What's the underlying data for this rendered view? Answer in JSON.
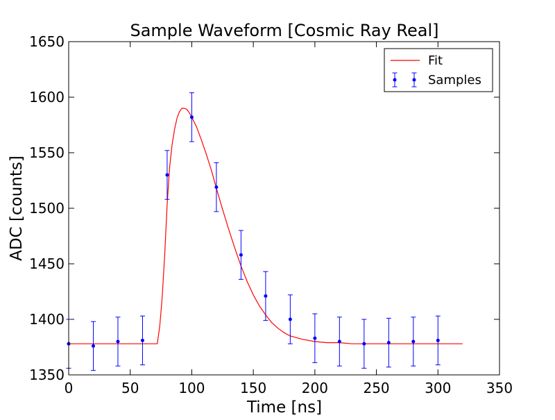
{
  "chart_data": {
    "type": "scatter",
    "title": "Sample Waveform [Cosmic Ray Real]",
    "xlabel": "Time [ns]",
    "ylabel": "ADC [counts]",
    "xlim": [
      0,
      350
    ],
    "ylim": [
      1350,
      1650
    ],
    "x_ticks": [
      0,
      50,
      100,
      150,
      200,
      250,
      300,
      350
    ],
    "y_ticks": [
      1350,
      1400,
      1450,
      1500,
      1550,
      1600,
      1650
    ],
    "grid": false,
    "legend_position": "top-right",
    "colors": {
      "fit": "#ff0000",
      "samples": "#0000ff"
    },
    "series": [
      {
        "name": "Fit",
        "kind": "line",
        "color": "#ff0000",
        "x": [
          0,
          72,
          74,
          76,
          78,
          80,
          82,
          84,
          86,
          88,
          90,
          92,
          94,
          96,
          98,
          100,
          104,
          108,
          112,
          116,
          120,
          125,
          130,
          135,
          140,
          145,
          150,
          155,
          160,
          165,
          170,
          175,
          180,
          190,
          200,
          210,
          220,
          230,
          240,
          260,
          280,
          300,
          320
        ],
        "y": [
          1378,
          1378,
          1394,
          1420,
          1458,
          1503,
          1537,
          1557,
          1571,
          1581,
          1587,
          1590,
          1590,
          1589,
          1586,
          1582,
          1573,
          1561,
          1548,
          1534,
          1518,
          1499,
          1481,
          1464,
          1448,
          1434,
          1422,
          1412,
          1404,
          1397,
          1392,
          1388,
          1385,
          1382,
          1380,
          1379,
          1379,
          1378,
          1378,
          1378,
          1378,
          1378,
          1378
        ]
      },
      {
        "name": "Samples",
        "kind": "errorbar",
        "color": "#0000ff",
        "points": [
          {
            "x": 0,
            "y": 1378,
            "err": 22
          },
          {
            "x": 20,
            "y": 1376,
            "err": 22
          },
          {
            "x": 40,
            "y": 1380,
            "err": 22
          },
          {
            "x": 60,
            "y": 1381,
            "err": 22
          },
          {
            "x": 80,
            "y": 1530,
            "err": 22
          },
          {
            "x": 100,
            "y": 1582,
            "err": 22
          },
          {
            "x": 120,
            "y": 1519,
            "err": 22
          },
          {
            "x": 140,
            "y": 1458,
            "err": 22
          },
          {
            "x": 160,
            "y": 1421,
            "err": 22
          },
          {
            "x": 180,
            "y": 1400,
            "err": 22
          },
          {
            "x": 200,
            "y": 1383,
            "err": 22
          },
          {
            "x": 220,
            "y": 1380,
            "err": 22
          },
          {
            "x": 240,
            "y": 1378,
            "err": 22
          },
          {
            "x": 260,
            "y": 1379,
            "err": 22
          },
          {
            "x": 280,
            "y": 1380,
            "err": 22
          },
          {
            "x": 300,
            "y": 1381,
            "err": 22
          }
        ]
      }
    ]
  }
}
